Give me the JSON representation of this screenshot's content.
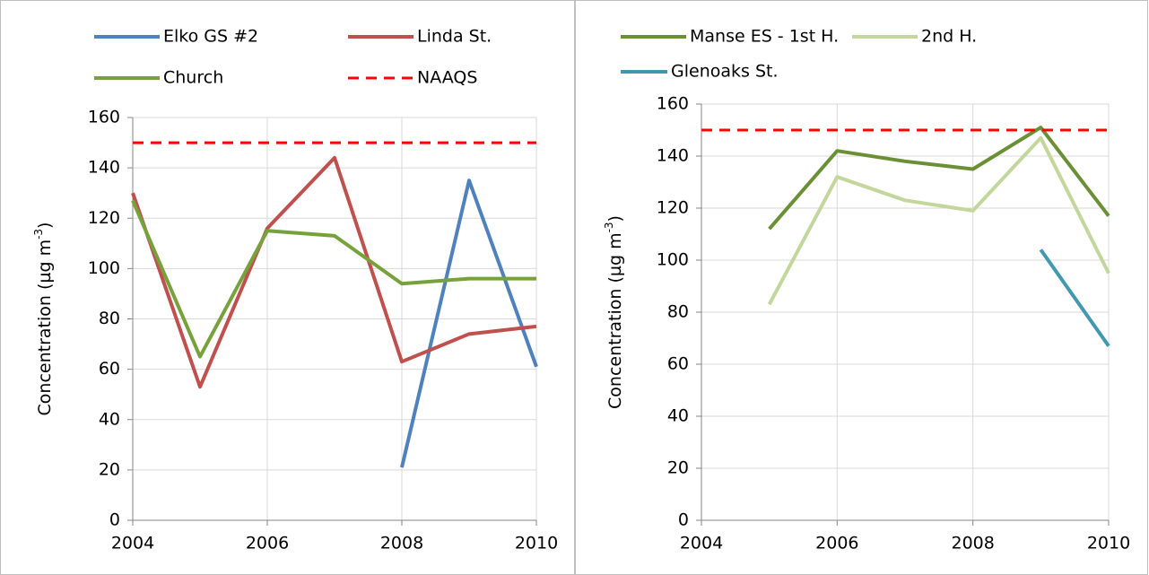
{
  "chart_data": [
    {
      "type": "line",
      "ylabel_parts": [
        "Concentration (µg m",
        "-3",
        ")"
      ],
      "x": [
        2004,
        2005,
        2006,
        2007,
        2008,
        2009,
        2010
      ],
      "xlim": [
        2004,
        2010
      ],
      "xticks": [
        2004,
        2006,
        2008,
        2010
      ],
      "ylim": [
        0,
        160
      ],
      "yticks": [
        0,
        20,
        40,
        60,
        80,
        100,
        120,
        140,
        160
      ],
      "grid": true,
      "series": [
        {
          "name": "Elko GS #2",
          "color": "#4f81bd",
          "values": [
            null,
            null,
            null,
            null,
            21,
            135,
            61
          ]
        },
        {
          "name": "Linda St.",
          "color": "#c0504d",
          "values": [
            130,
            53,
            116,
            144,
            63,
            74,
            77
          ]
        },
        {
          "name": "Church",
          "color": "#77a23b",
          "values": [
            127,
            65,
            115,
            113,
            94,
            96,
            96
          ]
        },
        {
          "name": "NAAQS",
          "color": "#ff0000",
          "style": "dashed",
          "values": [
            150,
            150,
            150,
            150,
            150,
            150,
            150
          ]
        }
      ]
    },
    {
      "type": "line",
      "ylabel_parts": [
        "Concentration (µg m",
        "-3",
        ")"
      ],
      "x": [
        2004,
        2005,
        2006,
        2007,
        2008,
        2009,
        2010
      ],
      "xlim": [
        2004,
        2010
      ],
      "xticks": [
        2004,
        2006,
        2008,
        2010
      ],
      "ylim": [
        0,
        160
      ],
      "yticks": [
        0,
        20,
        40,
        60,
        80,
        100,
        120,
        140,
        160
      ],
      "grid": true,
      "series": [
        {
          "name": "Manse ES - 1st H.",
          "color": "#6b8f35",
          "values": [
            null,
            112,
            142,
            138,
            135,
            151,
            117
          ]
        },
        {
          "name": "2nd H.",
          "color": "#c3d69b",
          "values": [
            null,
            83,
            132,
            123,
            119,
            147,
            95
          ]
        },
        {
          "name": "Glenoaks St.",
          "color": "#4198af",
          "values": [
            null,
            null,
            null,
            null,
            null,
            104,
            67
          ]
        },
        {
          "color": "#ff0000",
          "style": "dashed",
          "values": [
            150,
            150,
            150,
            150,
            150,
            150,
            150
          ]
        }
      ]
    }
  ]
}
